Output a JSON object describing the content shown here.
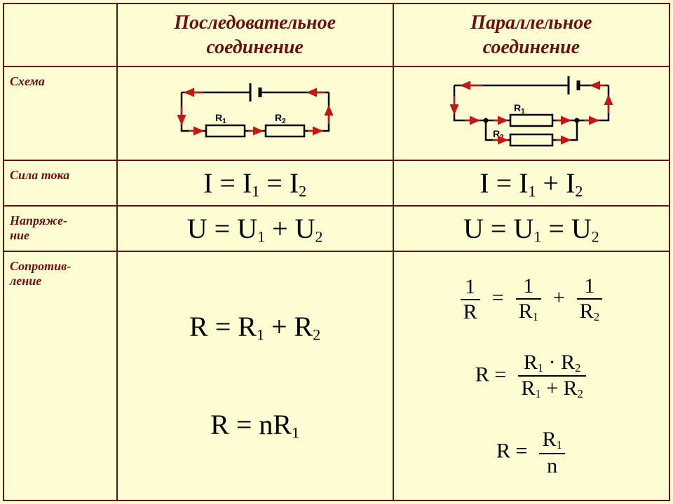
{
  "theme": {
    "bg": "#fdfdd4",
    "border": "#6b0f0f",
    "label_color": "#6b0f0f",
    "formula_color": "#000000",
    "arrow_color": "#c21717",
    "wire_color": "#000000"
  },
  "layout": {
    "col_label_pct": 17,
    "col_content_pct": 41.5,
    "row_header_h": 90,
    "row_scheme_h": 125,
    "row_current_h": 65,
    "row_voltage_h": 65,
    "row_resist_h": 355
  },
  "headers": {
    "blank": "",
    "series": "Последовательное\nсоединение",
    "parallel": "Параллельное\nсоединение"
  },
  "rows": {
    "scheme": "Схема",
    "current": "Сила тока",
    "voltage": "Напряже-\nние",
    "resistance": "Сопротив-\nление"
  },
  "formulas": {
    "series_I": "I = I1 = I2",
    "parallel_I": "I = I1 + I2",
    "series_U": "U = U1 + U2",
    "parallel_U": "U = U1 = U2",
    "series_R1": "R = R1 + R2",
    "series_R2": "R = nR1",
    "parallel_R1_lhs_num": "1",
    "parallel_R1_lhs_den": "R",
    "parallel_R1_t1_num": "1",
    "parallel_R1_t1_den": "R1",
    "parallel_R1_t2_num": "1",
    "parallel_R1_t2_den": "R2",
    "parallel_R2_lhs": "R",
    "parallel_R2_num": "R1 · R2",
    "parallel_R2_den": "R1 + R2",
    "parallel_R3_lhs": "R",
    "parallel_R3_num": "R1",
    "parallel_R3_den": "n"
  },
  "diagram": {
    "r1": "R",
    "r1_sub": "1",
    "r2": "R",
    "r2_sub": "2"
  }
}
